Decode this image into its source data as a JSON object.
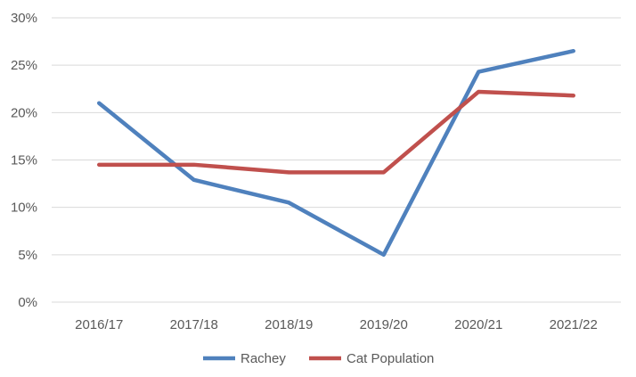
{
  "chart_data": {
    "type": "line",
    "categories": [
      "2016/17",
      "2017/18",
      "2018/19",
      "2019/20",
      "2020/21",
      "2021/22"
    ],
    "series": [
      {
        "name": "Rachey",
        "color": "#4f81bd",
        "values": [
          21.0,
          12.9,
          10.5,
          5.0,
          24.3,
          26.5
        ]
      },
      {
        "name": "Cat Population",
        "color": "#c0504d",
        "values": [
          14.5,
          14.5,
          13.7,
          13.7,
          22.2,
          21.8
        ]
      }
    ],
    "y_ticks": [
      "0%",
      "5%",
      "10%",
      "15%",
      "20%",
      "25%",
      "30%"
    ],
    "ylim": [
      0,
      30
    ],
    "grid": true,
    "legend_position": "bottom",
    "title": "",
    "xlabel": "",
    "ylabel": ""
  }
}
